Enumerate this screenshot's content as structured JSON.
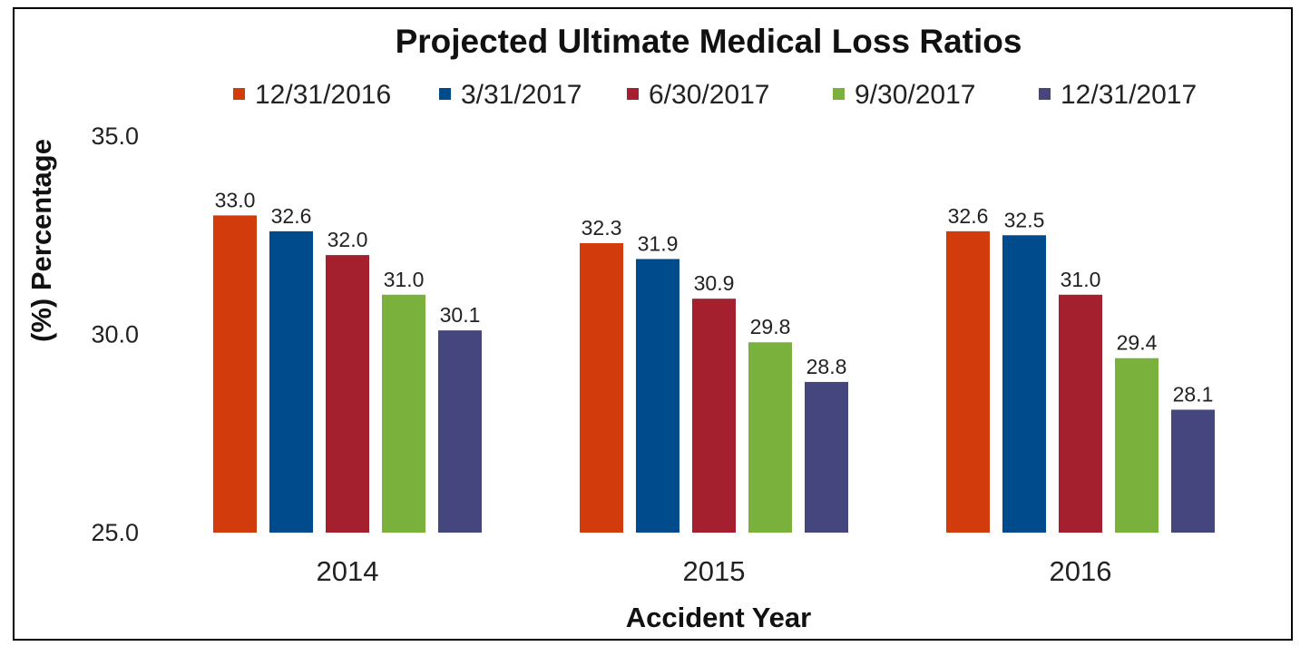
{
  "chart_data": {
    "type": "bar",
    "title": "Projected Ultimate Medical Loss Ratios",
    "xlabel": "Accident Year",
    "ylabel": "(%) Percentage",
    "ylim": [
      25.0,
      35.0
    ],
    "yticks": [
      "25.0",
      "30.0",
      "35.0"
    ],
    "grid": false,
    "legend_position": "top",
    "categories": [
      "2014",
      "2015",
      "2016"
    ],
    "series": [
      {
        "name": "12/31/2016",
        "color": "#d23b0b",
        "values": [
          33.0,
          32.3,
          32.6
        ],
        "labels": [
          "33.0",
          "32.3",
          "32.6"
        ]
      },
      {
        "name": "3/31/2017",
        "color": "#004b8c",
        "values": [
          32.6,
          31.9,
          32.5
        ],
        "labels": [
          "32.6",
          "31.9",
          "32.5"
        ]
      },
      {
        "name": "6/30/2017",
        "color": "#a4202f",
        "values": [
          32.0,
          30.9,
          31.0
        ],
        "labels": [
          "32.0",
          "30.9",
          "31.0"
        ]
      },
      {
        "name": "9/30/2017",
        "color": "#7ab03c",
        "values": [
          31.0,
          29.8,
          29.4
        ],
        "labels": [
          "31.0",
          "29.8",
          "29.4"
        ]
      },
      {
        "name": "12/31/2017",
        "color": "#45467e",
        "values": [
          30.1,
          28.8,
          28.1
        ],
        "labels": [
          "30.1",
          "28.8",
          "28.1"
        ]
      }
    ]
  }
}
